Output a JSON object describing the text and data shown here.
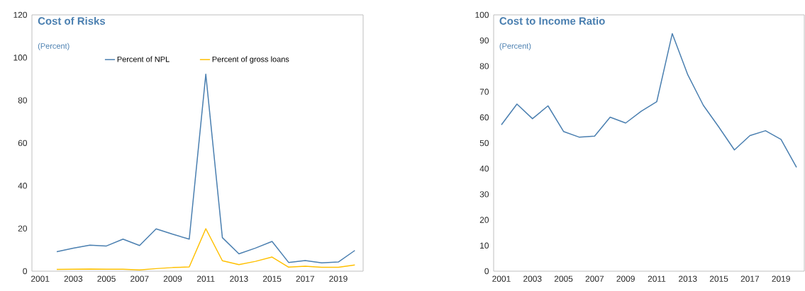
{
  "chart_data": [
    {
      "type": "line",
      "title": "Cost of Risks",
      "subtitle": "(Percent)",
      "categories": [
        "2001",
        null,
        "2003",
        null,
        "2005",
        null,
        "2007",
        null,
        "2009",
        null,
        "2011",
        null,
        "2013",
        null,
        "2015",
        null,
        "2017",
        null,
        "2019",
        null
      ],
      "series": [
        {
          "name": "Percent of NPL",
          "color": "#4a7fb0",
          "values": [
            null,
            9.1,
            10.8,
            12.2,
            11.8,
            15.0,
            12.0,
            19.8,
            17.3,
            15.0,
            92.2,
            15.7,
            8.1,
            10.8,
            13.9,
            4.1,
            5.0,
            3.9,
            4.3,
            9.7
          ]
        },
        {
          "name": "Percent of gross loans",
          "color": "#ffc000",
          "values": [
            null,
            0.8,
            0.9,
            1.0,
            0.9,
            0.9,
            0.6,
            1.2,
            1.7,
            2.0,
            19.9,
            4.9,
            3.1,
            4.6,
            6.6,
            1.9,
            2.3,
            1.8,
            1.8,
            2.9
          ]
        }
      ],
      "ylim": [
        0,
        120
      ],
      "yticks": [
        0,
        20,
        40,
        60,
        80,
        100,
        120
      ],
      "legend": "top"
    },
    {
      "type": "line",
      "title": "Cost to Income Ratio",
      "subtitle": "(Percent)",
      "categories": [
        "2001",
        null,
        "2003",
        null,
        "2005",
        null,
        "2007",
        null,
        "2009",
        null,
        "2011",
        null,
        "2013",
        null,
        "2015",
        null,
        "2017",
        null,
        "2019",
        null
      ],
      "series": [
        {
          "color": "#4a7fb0",
          "values": [
            57.1,
            65.2,
            59.5,
            64.5,
            54.5,
            52.3,
            52.7,
            60.1,
            57.8,
            62.4,
            66.1,
            92.7,
            76.6,
            64.7,
            56.2,
            47.3,
            52.9,
            54.8,
            51.4,
            40.5
          ]
        }
      ],
      "ylim": [
        0,
        100
      ],
      "yticks": [
        0,
        10,
        20,
        30,
        40,
        50,
        60,
        70,
        80,
        90,
        100
      ]
    }
  ]
}
